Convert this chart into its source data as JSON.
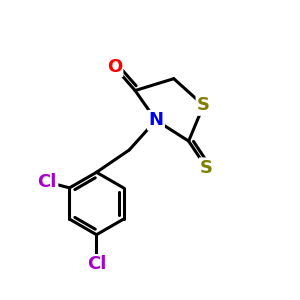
{
  "bg_color": "#ffffff",
  "atom_colors": {
    "O": "#ff0000",
    "N": "#0000ff",
    "S_ring": "#808000",
    "S_thione": "#808000",
    "Cl": "#aa00cc",
    "C": "#000000"
  },
  "bond_color": "#000000",
  "bond_lw": 2.2,
  "font_size": 13,
  "font_weight": "bold"
}
